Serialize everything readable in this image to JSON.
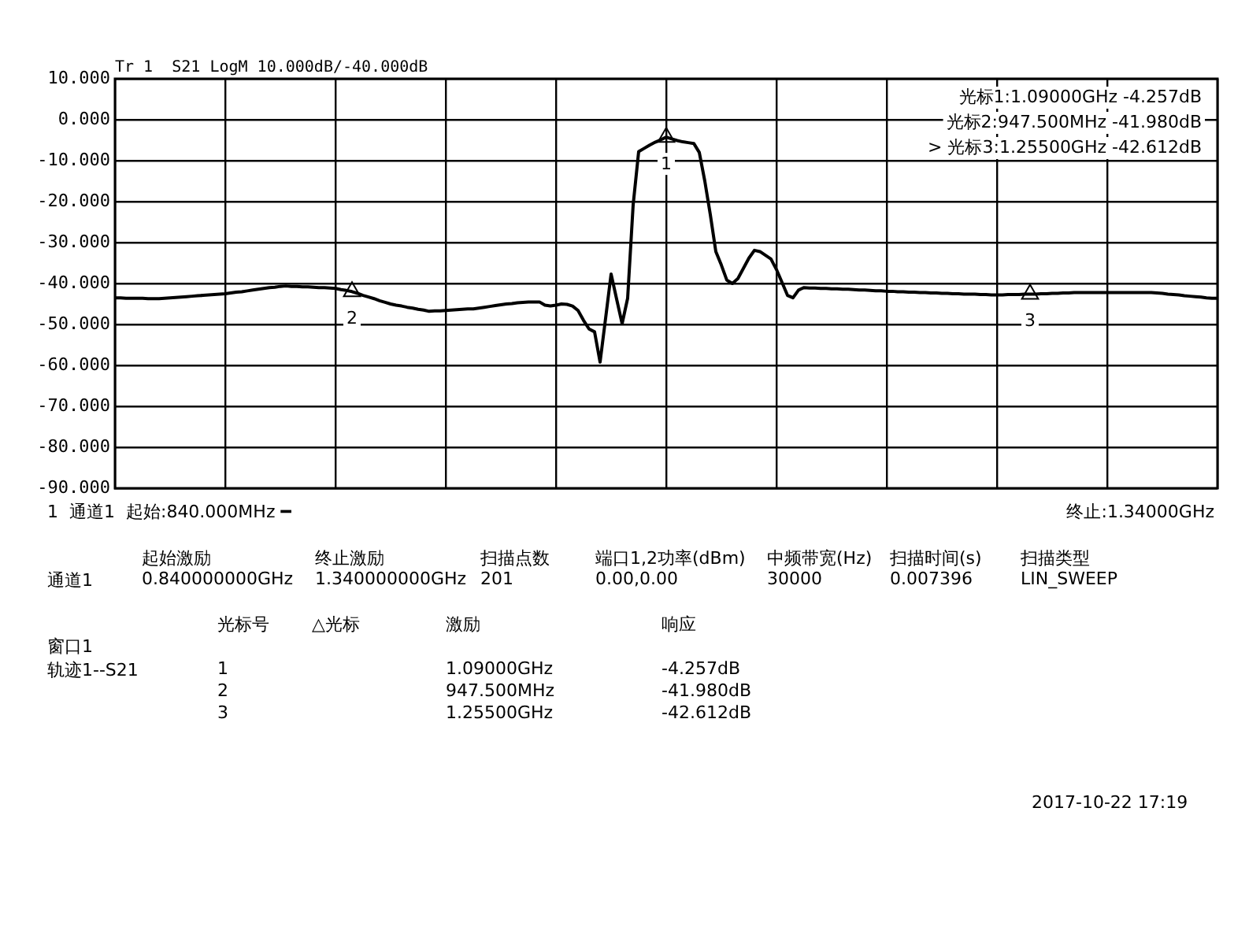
{
  "chart_data": {
    "type": "line",
    "title": "Tr 1  S21 LogM 10.000dB/-40.000dB",
    "categories": [
      null,
      null,
      null,
      null,
      null,
      null,
      null,
      null,
      null,
      null,
      null,
      null,
      null,
      null,
      null,
      null,
      null,
      null,
      null,
      null,
      null,
      null,
      null,
      null,
      null,
      null,
      null,
      null,
      null,
      null,
      null,
      null,
      null,
      null,
      null,
      null,
      null,
      null,
      null,
      null,
      null,
      null,
      null,
      null,
      null,
      null,
      null,
      null,
      null,
      null,
      null,
      null,
      null,
      null,
      null,
      null,
      null,
      null,
      null,
      null,
      null,
      null,
      null,
      null,
      null,
      null,
      null,
      null,
      null,
      null,
      null,
      null,
      null,
      null,
      null,
      null,
      null,
      null,
      null,
      null,
      null,
      null,
      null,
      null,
      null,
      null,
      null,
      null,
      null,
      null,
      null,
      null,
      null,
      null,
      null,
      null,
      null,
      null,
      null,
      null,
      null,
      null,
      null,
      null,
      null,
      null,
      null,
      null,
      null,
      null,
      null,
      null,
      null,
      null,
      null,
      null,
      null,
      null,
      null,
      null,
      null,
      null,
      null,
      null,
      null,
      null,
      null,
      null,
      null,
      null,
      null,
      null,
      null,
      null,
      null,
      null,
      null,
      null,
      null,
      null,
      null,
      null,
      null,
      null,
      null,
      null,
      null,
      null,
      null,
      null,
      null,
      null,
      null,
      null,
      null,
      null,
      null,
      null,
      null,
      null,
      null,
      null,
      null,
      null,
      null,
      null,
      null,
      null,
      null,
      null,
      null,
      null,
      null,
      null,
      null,
      null,
      null,
      null,
      null,
      null,
      null,
      null,
      null,
      null,
      null,
      null,
      null,
      null,
      null,
      null,
      null,
      null,
      null,
      null,
      null,
      null,
      null,
      null,
      null,
      null,
      null
    ],
    "ylim": [
      -90,
      10
    ],
    "yticks": [
      {
        "value": -90,
        "label": "-90.000"
      },
      {
        "value": -80,
        "label": "-80.000"
      },
      {
        "value": -70,
        "label": "-70.000"
      },
      {
        "value": -60,
        "label": "-60.000"
      },
      {
        "value": -50,
        "label": "-50.000"
      },
      {
        "value": -40,
        "label": "-40.000"
      },
      {
        "value": -30,
        "label": "-30.000"
      },
      {
        "value": -20,
        "label": "-20.000"
      },
      {
        "value": -10,
        "label": "-10.000"
      },
      {
        "value": 0,
        "label": "0.000"
      },
      {
        "value": 10,
        "label": "10.000"
      }
    ],
    "tick_labels": "y",
    "grid": true,
    "legend": false,
    "line_style": "solid",
    "series": [
      {
        "color": "#000000",
        "values": [
          -43.5,
          -43.5,
          -43.6,
          -43.6,
          -43.6,
          -43.6,
          -43.7,
          -43.7,
          -43.7,
          -43.6,
          -43.5,
          -43.4,
          -43.3,
          -43.2,
          -43.1,
          -43.0,
          -42.9,
          -42.8,
          -42.7,
          -42.6,
          -42.5,
          -42.3,
          -42.1,
          -42.0,
          -41.8,
          -41.6,
          -41.4,
          -41.2,
          -41.0,
          -40.9,
          -40.7,
          -40.6,
          -40.7,
          -40.7,
          -40.8,
          -40.8,
          -40.9,
          -41.0,
          -41.0,
          -41.1,
          -41.2,
          -41.5,
          -41.7,
          -41.98,
          -42.4,
          -42.9,
          -43.3,
          -43.7,
          -44.2,
          -44.6,
          -45.0,
          -45.3,
          -45.5,
          -45.8,
          -46.0,
          -46.3,
          -46.5,
          -46.8,
          -46.7,
          -46.7,
          -46.6,
          -46.5,
          -46.4,
          -46.3,
          -46.2,
          -46.2,
          -46.0,
          -45.8,
          -45.6,
          -45.4,
          -45.2,
          -45.0,
          -44.9,
          -44.7,
          -44.6,
          -44.5,
          -44.5,
          -44.5,
          -45.3,
          -45.5,
          -45.3,
          -45.0,
          -45.1,
          -45.5,
          -46.6,
          -49.0,
          -51.1,
          -51.8,
          -59.2,
          -48.5,
          -37.7,
          -43.8,
          -49.8,
          -43.6,
          -20.8,
          -7.8,
          -7.0,
          -6.2,
          -5.5,
          -4.9,
          -4.257,
          -4.7,
          -5.1,
          -5.4,
          -5.6,
          -5.8,
          -8.0,
          -15.0,
          -23.2,
          -32.2,
          -35.5,
          -39.2,
          -40.0,
          -38.8,
          -36.3,
          -33.8,
          -31.9,
          -32.2,
          -33.1,
          -34.0,
          -36.6,
          -39.7,
          -42.9,
          -43.5,
          -41.6,
          -41.0,
          -41.1,
          -41.1,
          -41.2,
          -41.2,
          -41.3,
          -41.3,
          -41.4,
          -41.4,
          -41.5,
          -41.6,
          -41.6,
          -41.7,
          -41.8,
          -41.8,
          -41.9,
          -41.9,
          -42.0,
          -42.0,
          -42.1,
          -42.1,
          -42.2,
          -42.2,
          -42.3,
          -42.3,
          -42.4,
          -42.4,
          -42.5,
          -42.5,
          -42.6,
          -42.6,
          -42.6,
          -42.7,
          -42.7,
          -42.8,
          -42.8,
          -42.8,
          -42.7,
          -42.7,
          -42.7,
          -42.6,
          -42.612,
          -42.6,
          -42.5,
          -42.5,
          -42.4,
          -42.4,
          -42.3,
          -42.3,
          -42.2,
          -42.2,
          -42.2,
          -42.2,
          -42.2,
          -42.2,
          -42.2,
          -42.2,
          -42.2,
          -42.2,
          -42.2,
          -42.2,
          -42.2,
          -42.2,
          -42.2,
          -42.3,
          -42.4,
          -42.6,
          -42.7,
          -42.8,
          -43.0,
          -43.1,
          -43.2,
          -43.3,
          -43.5,
          -43.6,
          -43.6
        ]
      },
      {
        "type": "scatter",
        "marker": "triangle",
        "color": "#000000",
        "values": [
          null,
          null,
          null,
          null,
          null,
          null,
          null,
          null,
          null,
          null,
          null,
          null,
          null,
          null,
          null,
          null,
          null,
          null,
          null,
          null,
          null,
          null,
          null,
          null,
          null,
          null,
          null,
          null,
          null,
          null,
          null,
          null,
          null,
          null,
          null,
          null,
          null,
          null,
          null,
          null,
          null,
          null,
          null,
          -41.98,
          null,
          null,
          null,
          null,
          null,
          null,
          null,
          null,
          null,
          null,
          null,
          null,
          null,
          null,
          null,
          null,
          null,
          null,
          null,
          null,
          null,
          null,
          null,
          null,
          null,
          null,
          null,
          null,
          null,
          null,
          null,
          null,
          null,
          null,
          null,
          null,
          null,
          null,
          null,
          null,
          null,
          null,
          null,
          null,
          null,
          null,
          null,
          null,
          null,
          null,
          null,
          null,
          null,
          null,
          null,
          null,
          -4.257,
          null,
          null,
          null,
          null,
          null,
          null,
          null,
          null,
          null,
          null,
          null,
          null,
          null,
          null,
          null,
          null,
          null,
          null,
          null,
          null,
          null,
          null,
          null,
          null,
          null,
          null,
          null,
          null,
          null,
          null,
          null,
          null,
          null,
          null,
          null,
          null,
          null,
          null,
          null,
          null,
          null,
          null,
          null,
          null,
          null,
          null,
          null,
          null,
          null,
          null,
          null,
          null,
          null,
          null,
          null,
          null,
          null,
          null,
          null,
          null,
          null,
          null,
          null,
          null,
          null,
          -42.612,
          null,
          null,
          null,
          null,
          null,
          null,
          null,
          null,
          null,
          null,
          null,
          null,
          null,
          null,
          null,
          null,
          null,
          null,
          null,
          null,
          null,
          null,
          null,
          null,
          null,
          null,
          null,
          null,
          null,
          null,
          null,
          null,
          null,
          null
        ]
      }
    ],
    "annotations": [
      "光标1:1.09000GHz -4.257dB",
      "光标2:947.500MHz -41.980dB",
      "> 光标3:1.25500GHz -42.612dB",
      "1  通道1  起始:840.000MHz ━",
      "终止:1.34000GHz",
      "\t起始激励\t终止激励\t扫描点数\t端口1,2功率(dBm)\t中频带宽(Hz)\t扫描时间(s)\t扫描类型",
      "通道1\t0.840000000GHz\t1.340000000GHz\t201\t0.00,0.00\t30000\t0.007396\tLIN_SWEEP",
      "\t光标号\t△光标\t激励\t响应",
      "窗口1",
      "轨迹1--S21\t1\t\t1.09000GHz\t-4.257dB",
      "\t2\t\t947.500MHz\t-41.980dB",
      "\t3\t\t1.25500GHz\t-42.612dB",
      "2017-10-22 17:19",
      "2",
      "1",
      "3"
    ]
  }
}
